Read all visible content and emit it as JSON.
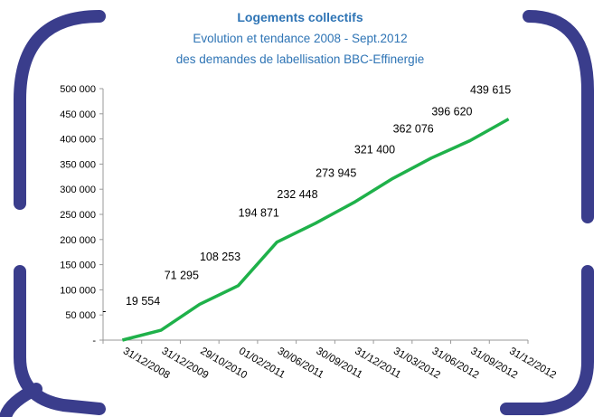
{
  "chart_data": {
    "type": "line",
    "title": "Logements collectifs",
    "subtitle": [
      "Evolution et tendance 2008 - Sept.2012",
      "des demandes de labellisation BBC-Effinergie"
    ],
    "categories": [
      "31/12/2008",
      "31/12/2009",
      "29/10/2010",
      "01/02/2011",
      "30/06/2011",
      "30/09/2011",
      "31/12/2011",
      "31/03/2012",
      "31/06/2012",
      "31/09/2012",
      "31/12/2012"
    ],
    "values": [
      0,
      19554,
      71295,
      108253,
      194871,
      232448,
      273945,
      321400,
      362076,
      396620,
      439615
    ],
    "value_labels": [
      "-",
      "19 554",
      "71 295",
      "108 253",
      "194 871",
      "232 448",
      "273 945",
      "321 400",
      "362 076",
      "396 620",
      "439 615"
    ],
    "color": "#1fb14a",
    "ylim": [
      0,
      500000
    ],
    "yticks": [
      {
        "value": 0,
        "label": "-"
      },
      {
        "value": 50000,
        "label": "50 000"
      },
      {
        "value": 100000,
        "label": "100 000"
      },
      {
        "value": 150000,
        "label": "150 000"
      },
      {
        "value": 200000,
        "label": "200 000"
      },
      {
        "value": 250000,
        "label": "250 000"
      },
      {
        "value": 300000,
        "label": "300 000"
      },
      {
        "value": 350000,
        "label": "350 000"
      },
      {
        "value": 400000,
        "label": "400 000"
      },
      {
        "value": 450000,
        "label": "450 000"
      },
      {
        "value": 500000,
        "label": "500 000"
      }
    ],
    "grid": false
  }
}
